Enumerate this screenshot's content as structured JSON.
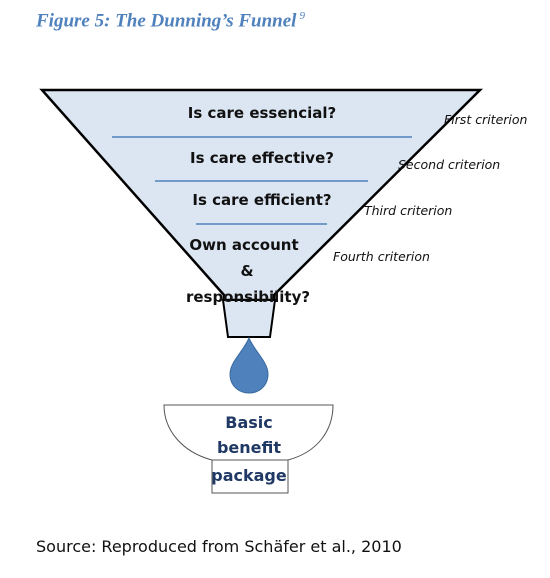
{
  "title": "Figure 5: The Dunning’s Funnel",
  "title_footnote": "9",
  "levels": [
    {
      "question": "Is care essencial?",
      "criterion": "First criterion"
    },
    {
      "question": "Is care effective?",
      "criterion": "Second criterion"
    },
    {
      "question": "Is care efficient?",
      "criterion": "Third criterion"
    },
    {
      "question_lines": [
        "Own account",
        "&",
        "responsibility?"
      ],
      "criterion": "Fourth criterion"
    }
  ],
  "bowl": {
    "lines": [
      "Basic",
      "benefit",
      "package"
    ]
  },
  "source": "Source: Reproduced from Schäfer et al., 2010",
  "colors": {
    "title": "#4f81bd",
    "funnel_fill": "#dce6f2",
    "divider": "#4f81bd",
    "drop": "#4f81bd",
    "bowl_text": "#1f3864"
  }
}
